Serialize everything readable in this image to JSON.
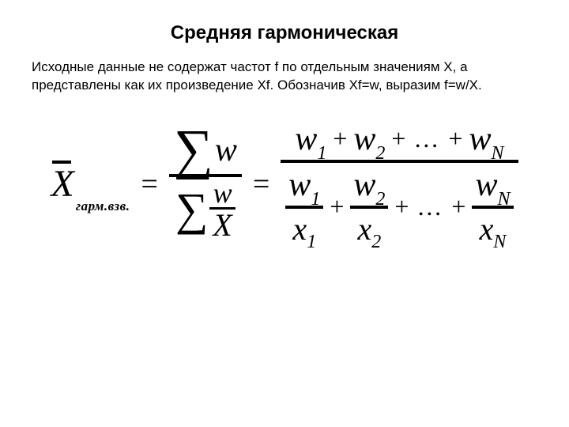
{
  "title": "Средняя гармоническая",
  "body": "Исходные данные не содержат частот f по отдельным значениям X, а представлены как их произведение Xf. Обозначив Xf=w, выразим f=w/X.",
  "formula": {
    "lhs_var": "X",
    "lhs_subscript": "гарм.взв.",
    "eq": "=",
    "sigma": "∑",
    "w": "w",
    "X": "X",
    "plus": "+",
    "dots": "…",
    "sub1": "1",
    "sub2": "2",
    "subN": "N",
    "x": "x"
  },
  "style": {
    "bg": "#ffffff",
    "text": "#000000",
    "title_fontsize": 24,
    "body_fontsize": 17,
    "formula_base_fontsize": 34
  }
}
